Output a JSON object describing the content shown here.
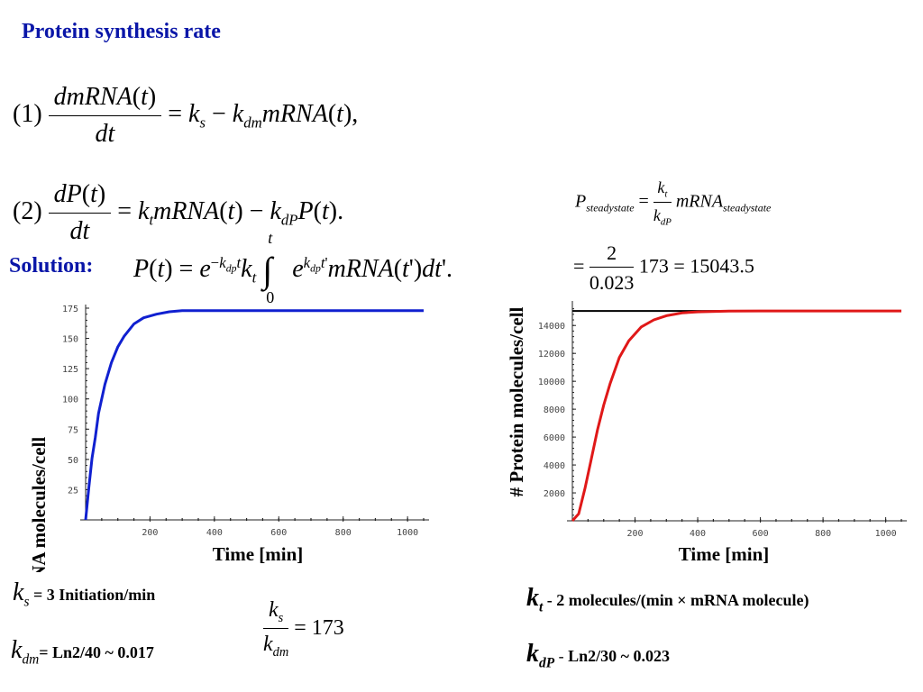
{
  "title": "Protein synthesis rate",
  "solution_label": "Solution:",
  "eq1_number": "(1)",
  "eq2_number": "(2)",
  "integral_lower": "0",
  "integral_upper": "t",
  "steady": {
    "frac_num": "2",
    "frac_den": "0.023",
    "value_tail": "173 = 15043.5"
  },
  "params": {
    "ks_text": "= 3 Initiation/min",
    "kdm_text": "= Ln2/40 ~ 0.017",
    "ratio_value": "= 173",
    "kt_text": "- 2 molecules/(min × mRNA molecule)",
    "kdp_text": "Ln2/30 ~ 0.023"
  },
  "chart_data": [
    {
      "type": "line",
      "ylabel": "# mRNA molecules/cell",
      "xlabel": "Time [min]",
      "xlim": [
        0,
        1050
      ],
      "ylim": [
        0,
        175
      ],
      "xticks": [
        200,
        400,
        600,
        800,
        1000
      ],
      "yticks": [
        25,
        50,
        75,
        100,
        125,
        150,
        175
      ],
      "color": "#1020d0",
      "series": [
        {
          "x": [
            0,
            10,
            20,
            30,
            40,
            60,
            80,
            100,
            120,
            150,
            180,
            220,
            260,
            300,
            400,
            600,
            800,
            1050
          ],
          "values": [
            0,
            27,
            51,
            68,
            88,
            112,
            130,
            143,
            152,
            162,
            167,
            170,
            172,
            173,
            173,
            173,
            173,
            173
          ]
        }
      ]
    },
    {
      "type": "line",
      "ylabel": "# Protein molecules/cell",
      "xlabel": "Time [min]",
      "xlim": [
        0,
        1050
      ],
      "ylim": [
        0,
        15500
      ],
      "xticks": [
        200,
        400,
        600,
        800,
        1000
      ],
      "yticks": [
        2000,
        4000,
        6000,
        8000,
        10000,
        12000,
        14000
      ],
      "color": "#e01818",
      "steady_line": 15043.5,
      "series": [
        {
          "x": [
            0,
            20,
            40,
            60,
            80,
            100,
            120,
            150,
            180,
            220,
            260,
            300,
            350,
            400,
            500,
            600,
            800,
            1050
          ],
          "values": [
            0,
            500,
            2300,
            4400,
            6500,
            8300,
            9800,
            11700,
            12900,
            13900,
            14400,
            14700,
            14900,
            14980,
            15030,
            15043,
            15043,
            15043
          ]
        }
      ]
    }
  ]
}
